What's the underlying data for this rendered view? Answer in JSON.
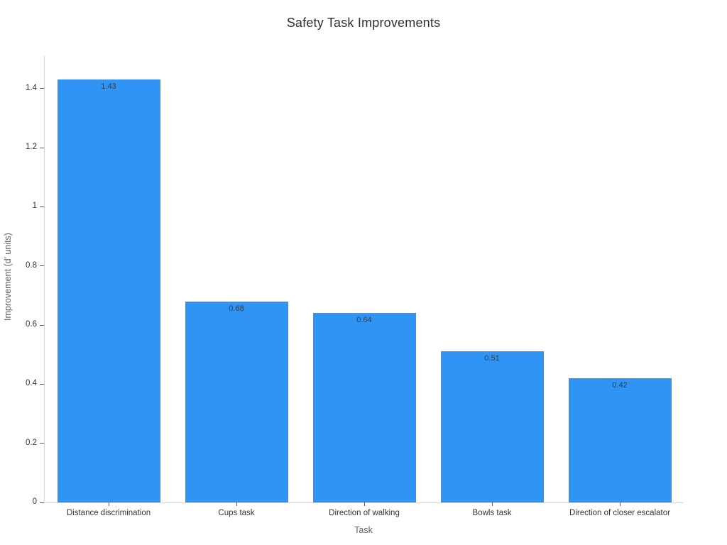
{
  "page": {
    "background": "#ffffff"
  },
  "chart_data": {
    "type": "bar",
    "title": "Safety Task Improvements",
    "xlabel": "Task",
    "ylabel": "Improvement (d' units)",
    "categories": [
      "Distance discrimination",
      "Cups task",
      "Direction of walking",
      "Bowls task",
      "Direction of closer escalator"
    ],
    "values": [
      1.43,
      0.68,
      0.64,
      0.51,
      0.42
    ],
    "value_labels": [
      "1.43",
      "0.68",
      "0.64",
      "0.51",
      "0.42"
    ],
    "y_ticks": [
      0,
      0.2,
      0.4,
      0.6,
      0.8,
      1,
      1.2,
      1.4
    ],
    "y_tick_labels": [
      "0",
      "0.2",
      "0.4",
      "0.6",
      "0.8",
      "1",
      "1.2",
      "1.4"
    ],
    "ylim": [
      0,
      1.512
    ],
    "grid": false,
    "legend_position": "none",
    "bar_color": "#3094F5",
    "axis_line_color": "#d6d6d6",
    "tick_color": "#5a5a5a",
    "tick_label_color": "#333333",
    "axis_title_color": "#5f5f5f",
    "title_color": "#2f2f2f",
    "value_label_color": "#3b3b3b"
  }
}
